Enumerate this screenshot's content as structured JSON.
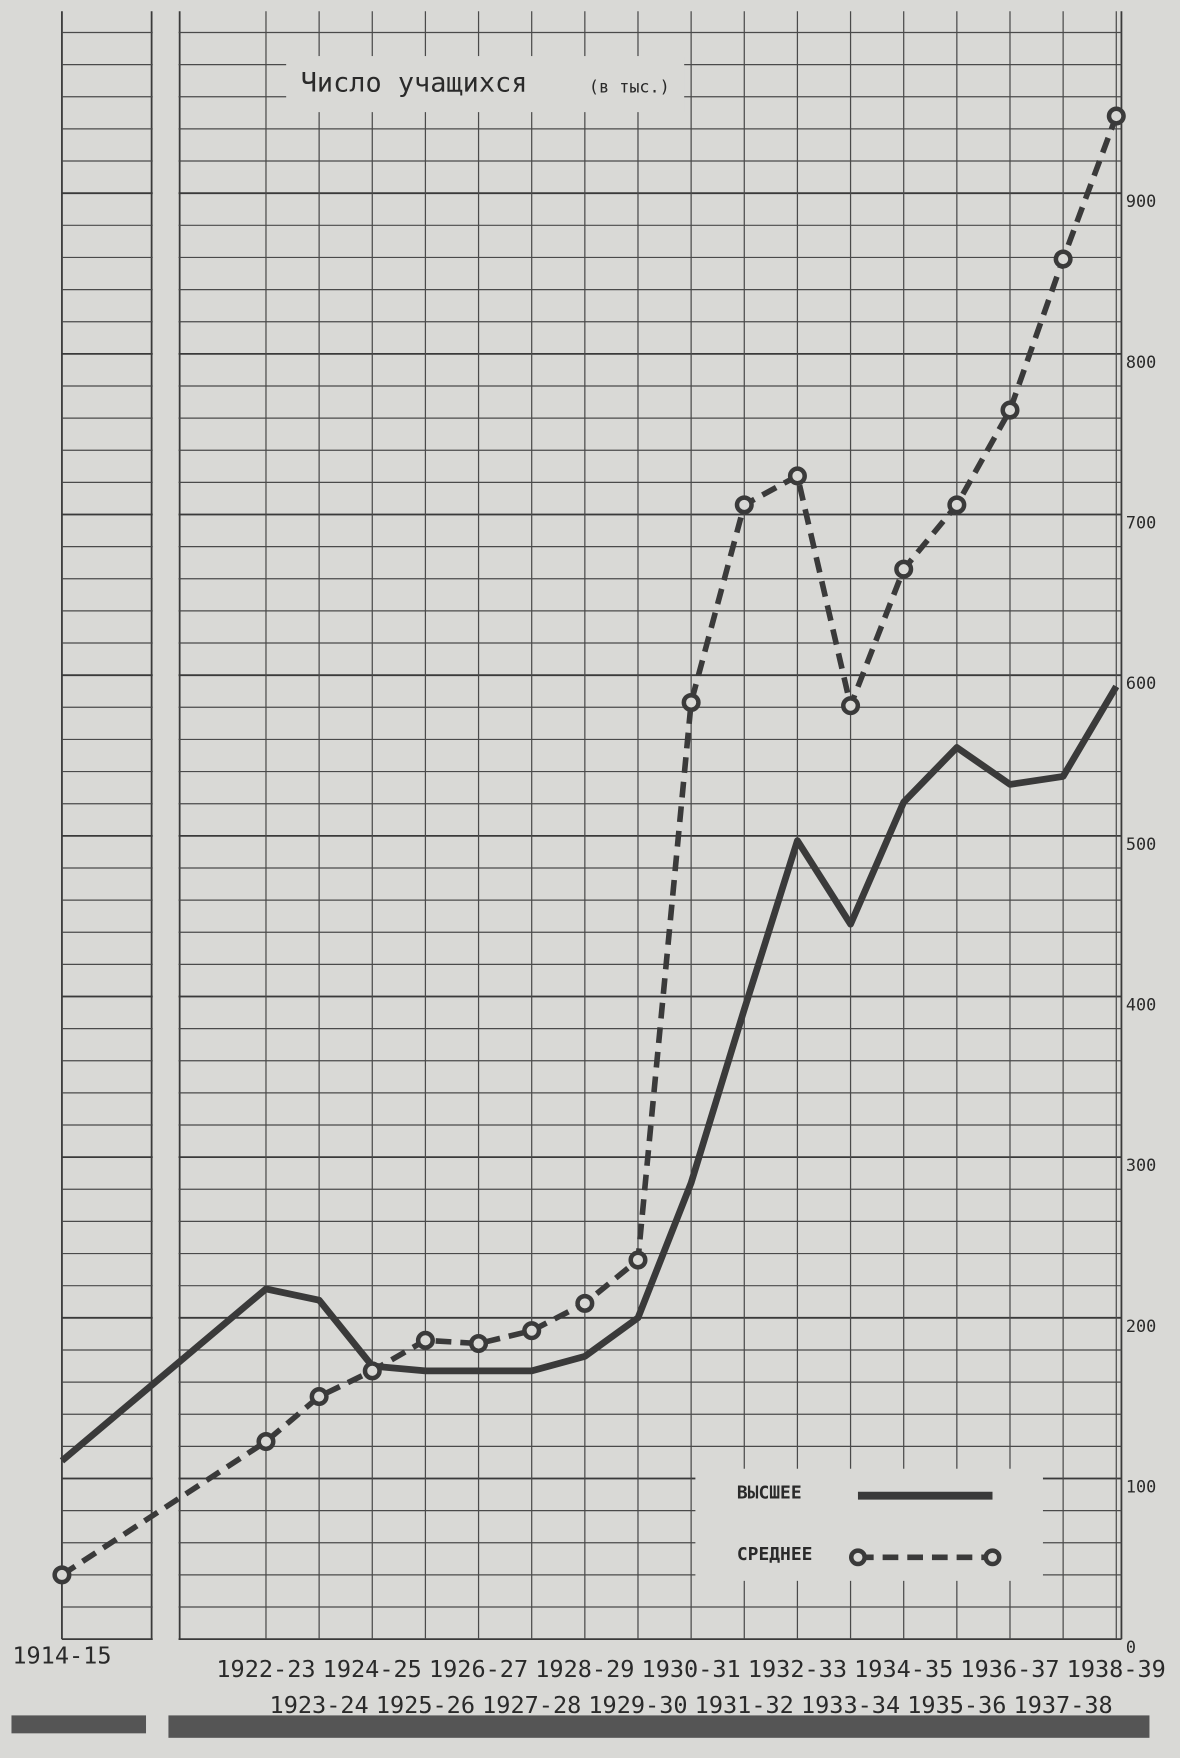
{
  "chart_data": {
    "type": "line",
    "title": "Число учащихся",
    "subtitle": "(в тыс.)",
    "categories": [
      "1914-15",
      "1922-23",
      "1923-24",
      "1924-25",
      "1925-26",
      "1926-27",
      "1927-28",
      "1928-29",
      "1929-30",
      "1930-31",
      "1931-32",
      "1932-33",
      "1933-34",
      "1934-35",
      "1935-36",
      "1936-37",
      "1937-38",
      "1938-39"
    ],
    "series": [
      {
        "name": "ВЫСШЕЕ",
        "color": "#3a3a3a",
        "style": "solid",
        "values": [
          111,
          218,
          211,
          170,
          167,
          167,
          167,
          176,
          200,
          284,
          392,
          497,
          445,
          521,
          555,
          532,
          537,
          593
        ]
      },
      {
        "name": "СРЕДНЕЕ",
        "color": "#3a3a3a",
        "style": "dashed",
        "marker": "circle",
        "values": [
          40,
          123,
          151,
          167,
          186,
          184,
          192,
          209,
          236,
          583,
          706,
          724,
          581,
          666,
          706,
          765,
          859,
          948
        ]
      }
    ],
    "ylim": [
      0,
      1000
    ],
    "yticks": [
      0,
      100,
      200,
      300,
      400,
      500,
      600,
      700,
      800,
      900
    ],
    "grid": true
  }
}
